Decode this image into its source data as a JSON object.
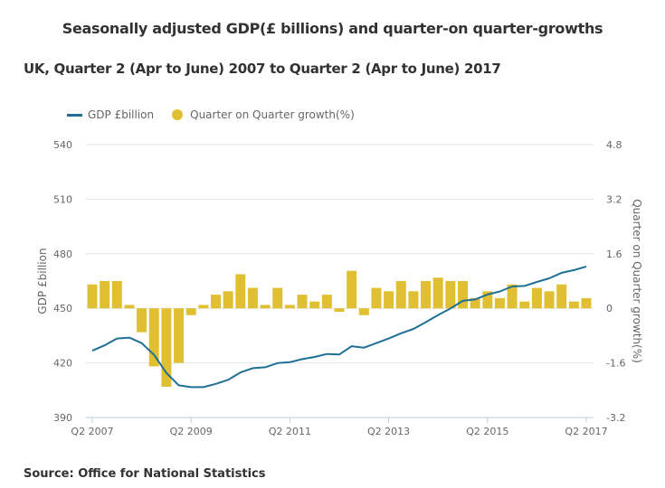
{
  "title": "Seasonally adjusted GDP(£ billions) and quarter-on  quarter-growths",
  "subtitle": "UK, Quarter 2 (Apr to June) 2007 to Quarter 2 (Apr to June) 2017",
  "source": "Source: Office for National Statistics",
  "colors": {
    "line": "#206f96",
    "bar": "#e0c032",
    "grid": "#e4e4e4",
    "axis": "#c0cde0"
  },
  "chart_data": {
    "type": "bar+line",
    "title": "Seasonally adjusted GDP(£ billions) and quarter-on  quarter-growths",
    "subtitle": "UK, Quarter 2 (Apr to June) 2007 to Quarter 2 (Apr to June) 2017",
    "ylabel": "GDP £billion",
    "y2label": "Quarter on Quarter growth(%)",
    "ylim": [
      390,
      540
    ],
    "y2lim": [
      -3.2,
      4.8
    ],
    "yticks": [
      540,
      510,
      480,
      450,
      420,
      390
    ],
    "y2ticks": [
      "4.8",
      "3.2",
      "1.6",
      "0",
      "-1.6",
      "-3.2"
    ],
    "xticks": [
      "Q2 2007",
      "Q2 2009",
      "Q2 2011",
      "Q2 2013",
      "Q2 2015",
      "Q2 2017"
    ],
    "xtick_every": 8,
    "grid": true,
    "legend_position": "top-left",
    "categories": [
      "Q2 2007",
      "Q3 2007",
      "Q4 2007",
      "Q1 2008",
      "Q2 2008",
      "Q3 2008",
      "Q4 2008",
      "Q1 2009",
      "Q2 2009",
      "Q3 2009",
      "Q4 2009",
      "Q1 2010",
      "Q2 2010",
      "Q3 2010",
      "Q4 2010",
      "Q1 2011",
      "Q2 2011",
      "Q3 2011",
      "Q4 2011",
      "Q1 2012",
      "Q2 2012",
      "Q3 2012",
      "Q4 2012",
      "Q1 2013",
      "Q2 2013",
      "Q3 2013",
      "Q4 2013",
      "Q1 2014",
      "Q2 2014",
      "Q3 2014",
      "Q4 2014",
      "Q1 2015",
      "Q2 2015",
      "Q3 2015",
      "Q4 2015",
      "Q1 2016",
      "Q2 2016",
      "Q3 2016",
      "Q4 2016",
      "Q1 2017",
      "Q2 2017"
    ],
    "series": [
      {
        "name": "GDP £billion",
        "type": "line",
        "axis": "left",
        "values": [
          426.7,
          429.7,
          433.4,
          433.9,
          430.9,
          424.4,
          414.5,
          407.7,
          406.7,
          406.7,
          408.5,
          410.7,
          414.8,
          417.1,
          417.6,
          419.9,
          420.4,
          422.1,
          423.3,
          424.9,
          424.6,
          429.2,
          428.4,
          430.9,
          433.4,
          436.3,
          438.7,
          442.4,
          446.3,
          449.9,
          454.1,
          454.9,
          457.6,
          459.3,
          462.0,
          462.3,
          464.5,
          466.5,
          469.5,
          471.0,
          473.0
        ]
      },
      {
        "name": "Quarter on Quarter growth(%)",
        "type": "bar",
        "axis": "right",
        "values": [
          0.7,
          0.8,
          0.8,
          0.1,
          -0.7,
          -1.7,
          -2.3,
          -1.6,
          -0.2,
          0.1,
          0.4,
          0.5,
          1.0,
          0.6,
          0.1,
          0.6,
          0.1,
          0.4,
          0.2,
          0.4,
          -0.1,
          1.1,
          -0.2,
          0.6,
          0.5,
          0.8,
          0.5,
          0.8,
          0.9,
          0.8,
          0.8,
          0.3,
          0.5,
          0.3,
          0.7,
          0.2,
          0.6,
          0.5,
          0.7,
          0.2,
          0.3
        ]
      }
    ]
  },
  "legend": [
    {
      "label": "GDP £billion",
      "kind": "line"
    },
    {
      "label": "Quarter on Quarter growth(%)",
      "kind": "dot"
    }
  ]
}
